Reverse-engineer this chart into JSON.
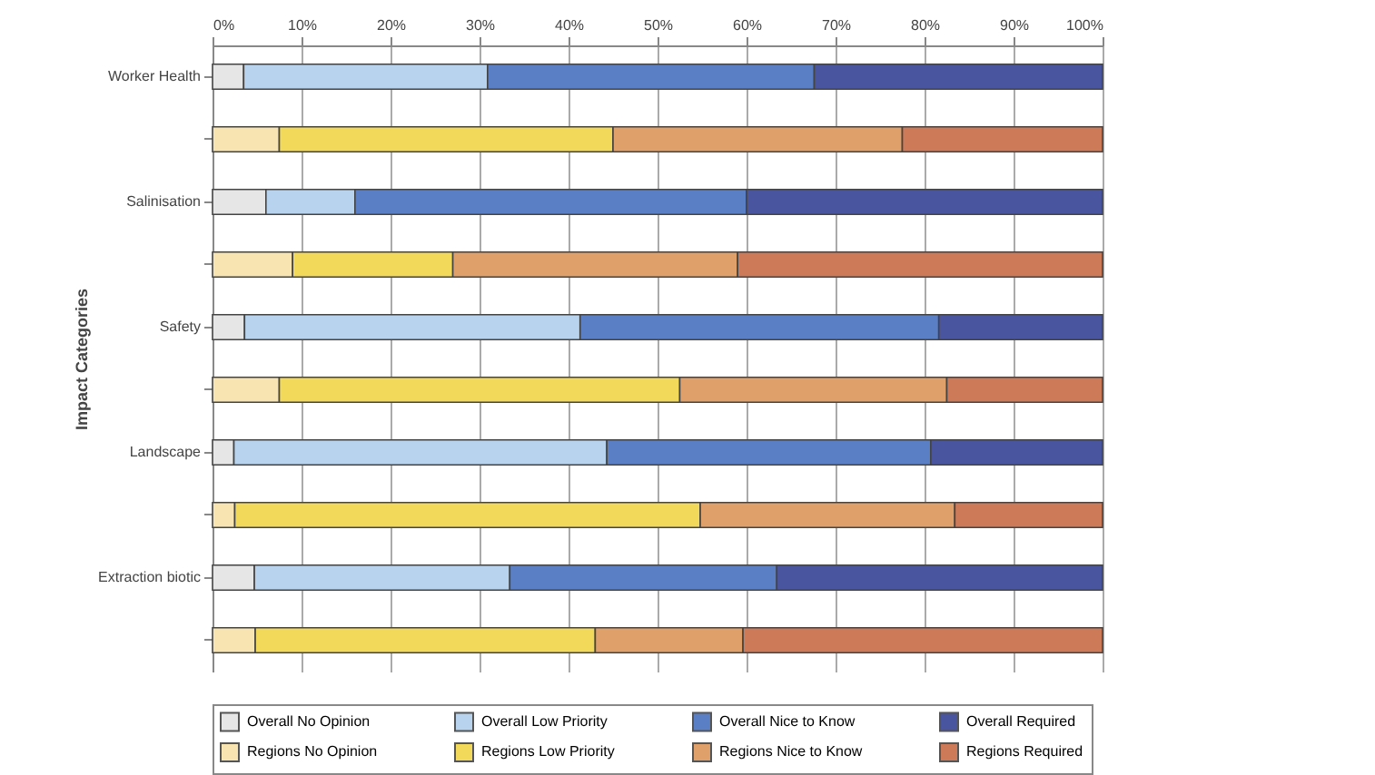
{
  "chart_data": {
    "type": "bar",
    "orientation": "horizontal",
    "stacked": true,
    "ylabel": "Impact Categories",
    "categories": [
      "Worker Health",
      null,
      "Salinisation",
      null,
      "Safety",
      null,
      "Landscape",
      null,
      "Extraction biotic",
      null
    ],
    "series": [
      {
        "name": "Overall No Opinion",
        "color": "#e6e6e6",
        "values": [
          3.5,
          null,
          6,
          null,
          3.6,
          null,
          2.4,
          null,
          4.7,
          null
        ]
      },
      {
        "name": "Overall Low Priority",
        "color": "#b7d3ee",
        "values": [
          27.4,
          null,
          10,
          null,
          37.7,
          null,
          41.9,
          null,
          28.7,
          null
        ]
      },
      {
        "name": "Overall Nice to Know",
        "color": "#5b7fc4",
        "values": [
          36.7,
          null,
          44,
          null,
          40.3,
          null,
          36.4,
          null,
          30,
          null
        ]
      },
      {
        "name": "Overall Required",
        "color": "#4a55a0",
        "values": [
          32.4,
          null,
          40,
          null,
          18.4,
          null,
          19.3,
          null,
          36.6,
          null
        ]
      },
      {
        "name": "Regions No Opinion",
        "color": "#f8e4b0",
        "values": [
          null,
          7.5,
          null,
          9,
          null,
          7.5,
          null,
          2.5,
          null,
          4.8
        ]
      },
      {
        "name": "Regions Low Priority",
        "color": "#f3d95a",
        "values": [
          null,
          37.5,
          null,
          18,
          null,
          45,
          null,
          52.3,
          null,
          38.2
        ]
      },
      {
        "name": "Regions Nice to Know",
        "color": "#e0a06a",
        "values": [
          null,
          32.5,
          null,
          32,
          null,
          30,
          null,
          28.6,
          null,
          16.6
        ]
      },
      {
        "name": "Regions Required",
        "color": "#cc7a58",
        "values": [
          null,
          22.5,
          null,
          41,
          null,
          17.5,
          null,
          16.6,
          null,
          40.4
        ]
      }
    ],
    "xlim": [
      0,
      100
    ],
    "xticks": [
      {
        "value": 0,
        "label": "0%"
      },
      {
        "value": 10,
        "label": "10%"
      },
      {
        "value": 20,
        "label": "20%"
      },
      {
        "value": 30,
        "label": "30%"
      },
      {
        "value": 40,
        "label": "40%"
      },
      {
        "value": 50,
        "label": "50%"
      },
      {
        "value": 60,
        "label": "60%"
      },
      {
        "value": 70,
        "label": "70%"
      },
      {
        "value": 80,
        "label": "80%"
      },
      {
        "value": 90,
        "label": "90%"
      },
      {
        "value": 100,
        "label": "100%"
      }
    ],
    "grid": "x",
    "legend": "bottom"
  }
}
